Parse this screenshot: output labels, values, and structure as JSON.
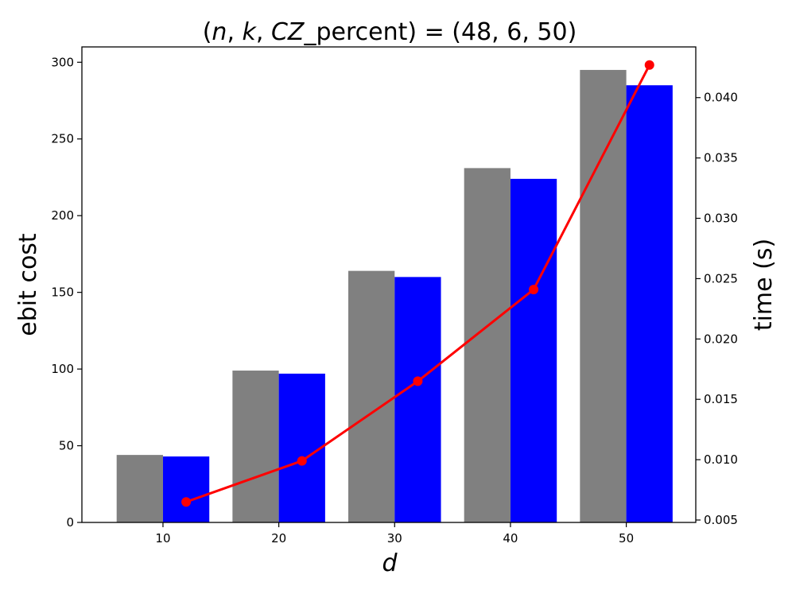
{
  "chart_data": {
    "type": "bar",
    "title": {
      "open": "(",
      "n": "n",
      "sep1": ", ",
      "k": "k",
      "sep2": ", ",
      "cz": "CZ",
      "suffix": "_percent) = (48, 6, 50)"
    },
    "xlabel": "d",
    "ylabel": "ebit cost",
    "y2label": "time (s)",
    "categories": [
      "10",
      "20",
      "30",
      "40",
      "50"
    ],
    "x_values": [
      10,
      20,
      30,
      40,
      50
    ],
    "series": [
      {
        "type": "bar",
        "axis": "left",
        "color": "#808080",
        "values": [
          44,
          99,
          164,
          231,
          295
        ]
      },
      {
        "type": "bar",
        "axis": "left",
        "color": "#0000ff",
        "values": [
          43,
          97,
          160,
          224,
          285
        ]
      },
      {
        "type": "line",
        "axis": "right",
        "color": "#ff0000",
        "x": [
          12,
          22,
          32,
          42,
          52
        ],
        "values": [
          0.0065,
          0.0099,
          0.0165,
          0.0241,
          0.0427
        ]
      }
    ],
    "ylim": [
      0,
      310
    ],
    "y2lim": [
      0.0048,
      0.0442
    ],
    "xlim": [
      3,
      56
    ],
    "yticks": [
      0,
      50,
      100,
      150,
      200,
      250,
      300
    ],
    "y2ticks": [
      0.005,
      0.01,
      0.015,
      0.02,
      0.025,
      0.03,
      0.035,
      0.04
    ],
    "y2tick_labels": [
      "0.005",
      "0.010",
      "0.015",
      "0.020",
      "0.025",
      "0.030",
      "0.035",
      "0.040"
    ],
    "grid": false,
    "legend": "none"
  }
}
